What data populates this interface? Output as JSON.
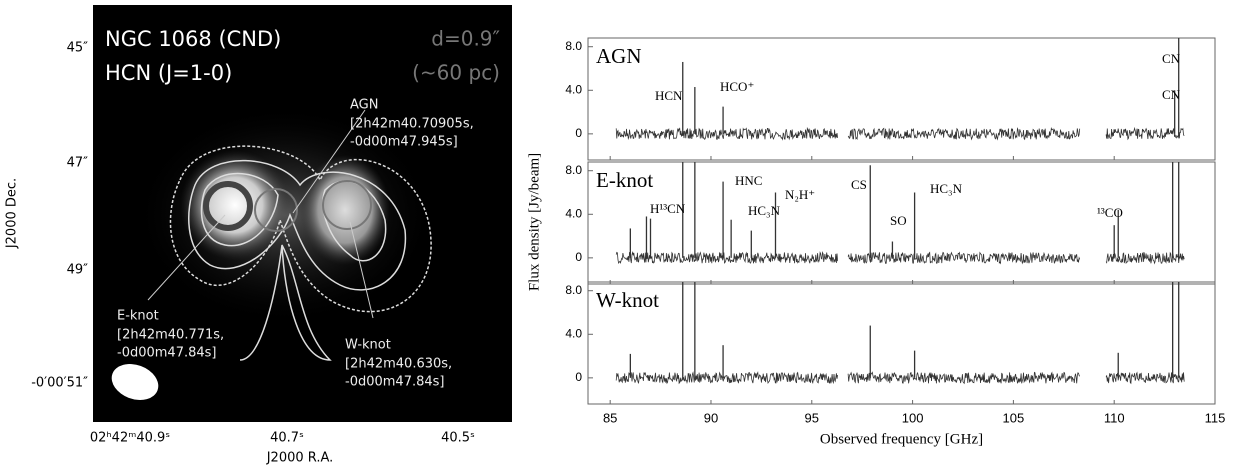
{
  "image_panel": {
    "title": "NGC 1068 (CND)",
    "line": "HCN (J=1-0)",
    "resolution": "d=0.9″",
    "scale": "(~60 pc)",
    "yticks": [
      "45″",
      "47″",
      "49″",
      "-0′00′51″"
    ],
    "ylabel": "J2000 Dec.",
    "xticks": [
      "02ʰ42ᵐ40.9ˢ",
      "40.7ˢ",
      "40.5ˢ"
    ],
    "xlabel": "J2000 R.A.",
    "agn": [
      "AGN",
      "[2h42m40.70905s,",
      "-0d00m47.945s]"
    ],
    "eknot": [
      "E-knot",
      "[2h42m40.771s,",
      "-0d00m47.84s]"
    ],
    "wknot": [
      "W-knot",
      "[2h42m40.630s,",
      "-0d00m47.84s]"
    ]
  },
  "chart_data": {
    "type": "line",
    "xlabel": "Observed frequency [GHz]",
    "ylabel": "Flux density [Jy/beam]",
    "xlim": [
      83.9,
      115
    ],
    "xticks": [
      85,
      90,
      95,
      100,
      105,
      110,
      115
    ],
    "color": "#333333",
    "panels": [
      {
        "name": "AGN",
        "ylim": [
          -2.4,
          8.8
        ],
        "yticks": [
          {
            "value": 8,
            "label": "8.0"
          },
          {
            "value": 4,
            "label": "4.0"
          },
          0
        ],
        "segments": [
          [
            85.3,
            96.3
          ],
          [
            96.8,
            108.3
          ],
          [
            109.6,
            113.5
          ]
        ],
        "peaks": [
          {
            "x": 88.6,
            "y": 6.6
          },
          {
            "x": 89.2,
            "y": 4.3
          },
          {
            "x": 90.6,
            "y": 2.5
          },
          {
            "x": 113.0,
            "y": 4
          },
          {
            "x": 113.2,
            "y": 8.8
          }
        ],
        "labels": [
          "HCN",
          "HCO⁺",
          "CN",
          "CN"
        ]
      },
      {
        "name": "E-knot",
        "ylim": [
          -2.4,
          8.8
        ],
        "yticks": [
          {
            "value": 8,
            "label": "8.0"
          },
          {
            "value": 4,
            "label": "4.0"
          },
          0
        ],
        "segments": [
          [
            85.3,
            96.3
          ],
          [
            96.8,
            108.3
          ],
          [
            109.6,
            113.5
          ]
        ],
        "peaks": [
          {
            "x": 86.0,
            "y": 2.7
          },
          {
            "x": 86.8,
            "y": 3.8
          },
          {
            "x": 87.0,
            "y": 3.6
          },
          {
            "x": 88.6,
            "y": 8.8
          },
          {
            "x": 89.2,
            "y": 8.8
          },
          {
            "x": 90.6,
            "y": 7
          },
          {
            "x": 91.0,
            "y": 3.5
          },
          {
            "x": 92.0,
            "y": 2.5
          },
          {
            "x": 93.2,
            "y": 6
          },
          {
            "x": 97.9,
            "y": 8.5
          },
          {
            "x": 99.0,
            "y": 1.5
          },
          {
            "x": 100.1,
            "y": 6
          },
          {
            "x": 110.0,
            "y": 3
          },
          {
            "x": 110.2,
            "y": 4.4
          },
          {
            "x": 112.9,
            "y": 8.8
          },
          {
            "x": 113.2,
            "y": 8.8
          }
        ],
        "labels": [
          "H¹³CN",
          "HNC",
          "HC₃N",
          "N₂H⁺",
          "CS",
          "SO",
          "HC₃N",
          "¹³CO"
        ]
      },
      {
        "name": "W-knot",
        "ylim": [
          -2.4,
          8.8
        ],
        "yticks": [
          {
            "value": 8,
            "label": "8.0"
          },
          {
            "value": 4,
            "label": "4.0"
          },
          0
        ],
        "segments": [
          [
            85.3,
            96.3
          ],
          [
            96.8,
            108.3
          ],
          [
            109.6,
            113.5
          ]
        ],
        "peaks": [
          {
            "x": 86.0,
            "y": 2.2
          },
          {
            "x": 88.6,
            "y": 8.8
          },
          {
            "x": 89.2,
            "y": 8.8
          },
          {
            "x": 90.6,
            "y": 3
          },
          {
            "x": 97.9,
            "y": 4.8
          },
          {
            "x": 100.1,
            "y": 2.5
          },
          {
            "x": 110.2,
            "y": 2.3
          },
          {
            "x": 112.9,
            "y": 8.8
          },
          {
            "x": 113.2,
            "y": 8.8
          }
        ],
        "labels": []
      }
    ]
  }
}
